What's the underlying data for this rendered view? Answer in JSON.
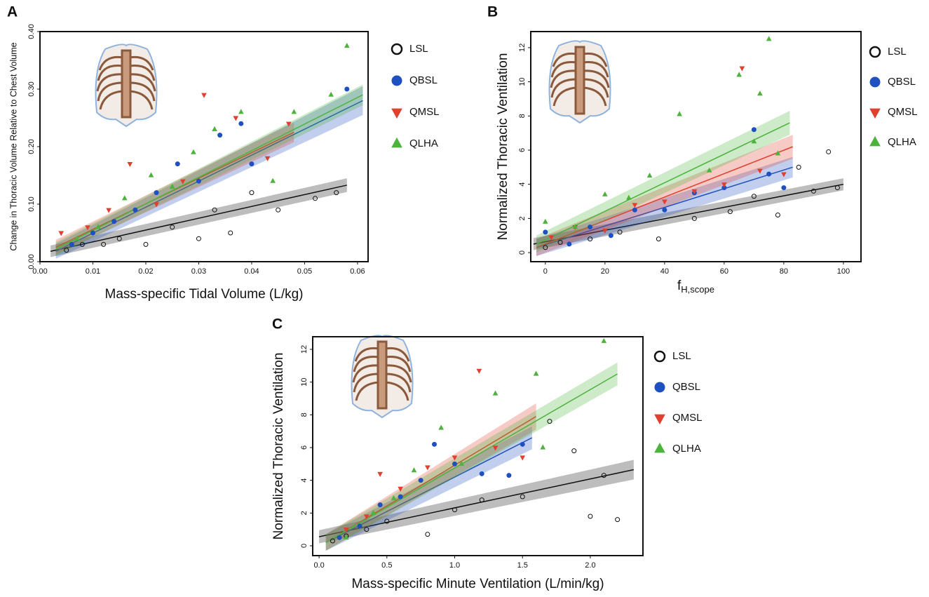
{
  "chart_data": [
    {
      "type": "scatter",
      "label": "A",
      "xlabel": "Mass-specific Tidal Volume (L/kg)",
      "ylabel": "Change in Thoracic Volume Relative to Chest Volume",
      "xlim": [
        0,
        0.062
      ],
      "xticks": [
        {
          "value": 0,
          "label": "0.00"
        },
        0.01,
        0.02,
        0.03,
        0.04,
        0.05,
        0.06
      ],
      "ylim": [
        0,
        0.4
      ],
      "yticks": [
        {
          "value": 0,
          "label": "0.00"
        },
        {
          "value": 0.1,
          "label": "0.10"
        },
        {
          "value": 0.2,
          "label": "0.20"
        },
        {
          "value": 0.3,
          "label": "0.30"
        },
        {
          "value": 0.4,
          "label": "0.40"
        }
      ],
      "series": [
        {
          "name": "LSL",
          "color": "#111111",
          "marker": "circle-open",
          "x": [
            0.005,
            0.008,
            0.012,
            0.015,
            0.02,
            0.025,
            0.03,
            0.033,
            0.036,
            0.04,
            0.045,
            0.052,
            0.056
          ],
          "values": [
            0.02,
            0.03,
            0.03,
            0.04,
            0.03,
            0.06,
            0.04,
            0.09,
            0.05,
            0.12,
            0.09,
            0.11,
            0.12
          ],
          "fit": {
            "x": [
              0.002,
              0.058
            ],
            "values": [
              0.018,
              0.133
            ],
            "lower": [
              0.008,
              0.121
            ],
            "upper": [
              0.028,
              0.145
            ]
          }
        },
        {
          "name": "QBSL",
          "color": "#1f50c0",
          "marker": "circle",
          "x": [
            0.006,
            0.01,
            0.014,
            0.018,
            0.022,
            0.026,
            0.03,
            0.034,
            0.038,
            0.04,
            0.058
          ],
          "values": [
            0.03,
            0.05,
            0.07,
            0.09,
            0.12,
            0.17,
            0.14,
            0.22,
            0.24,
            0.17,
            0.3
          ],
          "fit": {
            "x": [
              0.003,
              0.061
            ],
            "values": [
              0.018,
              0.28
            ],
            "lower": [
              0.005,
              0.255
            ],
            "upper": [
              0.031,
              0.305
            ]
          }
        },
        {
          "name": "QMSL",
          "color": "#e04030",
          "marker": "triangle-down",
          "x": [
            0.004,
            0.009,
            0.013,
            0.017,
            0.022,
            0.027,
            0.031,
            0.037,
            0.043,
            0.047
          ],
          "values": [
            0.05,
            0.06,
            0.09,
            0.17,
            0.1,
            0.14,
            0.29,
            0.25,
            0.18,
            0.24
          ],
          "fit": {
            "x": [
              0.003,
              0.048
            ],
            "values": [
              0.025,
              0.225
            ],
            "lower": [
              0.012,
              0.208
            ],
            "upper": [
              0.038,
              0.242
            ]
          }
        },
        {
          "name": "QLHA",
          "color": "#4db33d",
          "marker": "triangle-up",
          "x": [
            0.007,
            0.011,
            0.016,
            0.021,
            0.025,
            0.029,
            0.033,
            0.038,
            0.044,
            0.048,
            0.055,
            0.058
          ],
          "values": [
            0.04,
            0.06,
            0.11,
            0.15,
            0.13,
            0.19,
            0.23,
            0.26,
            0.14,
            0.26,
            0.29,
            0.375
          ],
          "fit": {
            "x": [
              0.003,
              0.061
            ],
            "values": [
              0.022,
              0.29
            ],
            "lower": [
              0.01,
              0.272
            ],
            "upper": [
              0.034,
              0.308
            ]
          }
        }
      ]
    },
    {
      "type": "scatter",
      "label": "B",
      "xlabel": "f",
      "xlabel_sub": "H,scope",
      "ylabel": "Normalized Thoracic Ventilation",
      "xlim": [
        -4.9,
        105.9
      ],
      "xticks": [
        0,
        20,
        40,
        60,
        80,
        100
      ],
      "ylim": [
        -0.53,
        12.94
      ],
      "yticks": [
        0,
        2,
        4,
        6,
        8,
        10,
        12
      ],
      "series": [
        {
          "name": "LSL",
          "color": "#111111",
          "marker": "circle-open",
          "x": [
            0,
            5,
            15,
            25,
            38,
            50,
            62,
            70,
            78,
            85,
            90,
            95,
            98
          ],
          "values": [
            0.3,
            0.6,
            0.8,
            1.2,
            0.8,
            2,
            2.4,
            3.3,
            2.2,
            5,
            3.6,
            5.9,
            3.8
          ],
          "fit": {
            "x": [
              -4,
              100
            ],
            "values": [
              0.5,
              4
            ],
            "lower": [
              0.15,
              3.65
            ],
            "upper": [
              0.85,
              4.35
            ]
          }
        },
        {
          "name": "QBSL",
          "color": "#1f50c0",
          "marker": "circle",
          "x": [
            0,
            8,
            15,
            22,
            30,
            40,
            50,
            60,
            70,
            75,
            80
          ],
          "values": [
            1.2,
            0.5,
            1.5,
            1,
            2.5,
            2.5,
            3.5,
            3.8,
            7.2,
            4.6,
            3.8
          ],
          "fit": {
            "x": [
              -3,
              83
            ],
            "values": [
              0.3,
              5
            ],
            "lower": [
              -0.2,
              4.4
            ],
            "upper": [
              0.8,
              5.6
            ]
          }
        },
        {
          "name": "QMSL",
          "color": "#e04030",
          "marker": "triangle-down",
          "x": [
            2,
            10,
            20,
            30,
            40,
            50,
            60,
            66,
            72,
            80
          ],
          "values": [
            0.9,
            1.5,
            1.3,
            2.8,
            3,
            3.6,
            4,
            10.8,
            4.8,
            4.6
          ],
          "fit": {
            "x": [
              -3,
              83
            ],
            "values": [
              0.3,
              6.2
            ],
            "lower": [
              -0.2,
              5.5
            ],
            "upper": [
              0.8,
              6.9
            ]
          }
        },
        {
          "name": "QLHA",
          "color": "#4db33d",
          "marker": "triangle-up",
          "x": [
            0,
            10,
            20,
            28,
            35,
            45,
            55,
            65,
            70,
            72,
            75,
            78
          ],
          "values": [
            1.8,
            1.5,
            3.4,
            3.2,
            4.5,
            8.1,
            4.8,
            10.4,
            6.5,
            9.3,
            12.5,
            5.8
          ],
          "fit": {
            "x": [
              -3,
              82
            ],
            "values": [
              0.5,
              7.6
            ],
            "lower": [
              0,
              6.9
            ],
            "upper": [
              1,
              8.3
            ]
          }
        }
      ]
    },
    {
      "type": "scatter",
      "label": "C",
      "xlabel": "Mass-specific Minute Ventilation (L/min/kg)",
      "ylabel": "Normalized Thoracic Ventilation",
      "xlim": [
        -0.047,
        2.388
      ],
      "xticks": [
        {
          "value": 0,
          "label": "0.0"
        },
        0.5,
        {
          "value": 1,
          "label": "1.0"
        },
        1.5,
        {
          "value": 2,
          "label": "2.0"
        }
      ],
      "ylim": [
        -0.6,
        12.77
      ],
      "yticks": [
        0,
        2,
        4,
        6,
        8,
        10,
        12
      ],
      "series": [
        {
          "name": "LSL",
          "color": "#111111",
          "marker": "circle-open",
          "x": [
            0.1,
            0.2,
            0.35,
            0.5,
            0.8,
            1,
            1.2,
            1.5,
            1.7,
            1.88,
            2,
            2.1,
            2.2
          ],
          "values": [
            0.3,
            0.6,
            1,
            1.5,
            0.7,
            2.2,
            2.8,
            3,
            7.6,
            5.8,
            1.8,
            4.3,
            1.6
          ],
          "fit": {
            "x": [
              0,
              2.32
            ],
            "values": [
              0.55,
              4.65
            ],
            "lower": [
              0.15,
              4.05
            ],
            "upper": [
              0.95,
              5.25
            ]
          }
        },
        {
          "name": "QBSL",
          "color": "#1f50c0",
          "marker": "circle",
          "x": [
            0.15,
            0.3,
            0.45,
            0.6,
            0.75,
            0.85,
            1,
            1.2,
            1.4,
            1.5
          ],
          "values": [
            0.5,
            1.2,
            2.5,
            3,
            4,
            6.2,
            5,
            4.4,
            4.3,
            6.2
          ],
          "fit": {
            "x": [
              0.05,
              1.57
            ],
            "values": [
              0.2,
              6.6
            ],
            "lower": [
              -0.3,
              5.9
            ],
            "upper": [
              0.7,
              7.3
            ]
          }
        },
        {
          "name": "QMSL",
          "color": "#e04030",
          "marker": "triangle-down",
          "x": [
            0.2,
            0.35,
            0.45,
            0.6,
            0.8,
            1,
            1.18,
            1.3,
            1.5
          ],
          "values": [
            1,
            1.8,
            4.4,
            3.5,
            4.8,
            5.4,
            10.7,
            6,
            5.4
          ],
          "fit": {
            "x": [
              0.05,
              1.6
            ],
            "values": [
              0.2,
              7.9
            ],
            "lower": [
              -0.3,
              7.1
            ],
            "upper": [
              0.7,
              8.7
            ]
          }
        },
        {
          "name": "QLHA",
          "color": "#4db33d",
          "marker": "triangle-up",
          "x": [
            0.2,
            0.4,
            0.55,
            0.7,
            0.9,
            1.05,
            1.3,
            1.6,
            1.65,
            2.1
          ],
          "values": [
            0.5,
            2,
            2.9,
            4.6,
            7.2,
            5,
            9.3,
            10.5,
            6,
            12.5
          ],
          "fit": {
            "x": [
              0.05,
              2.2
            ],
            "values": [
              0.2,
              10.5
            ],
            "lower": [
              -0.3,
              9.8
            ],
            "upper": [
              0.7,
              11.2
            ]
          }
        }
      ]
    }
  ]
}
